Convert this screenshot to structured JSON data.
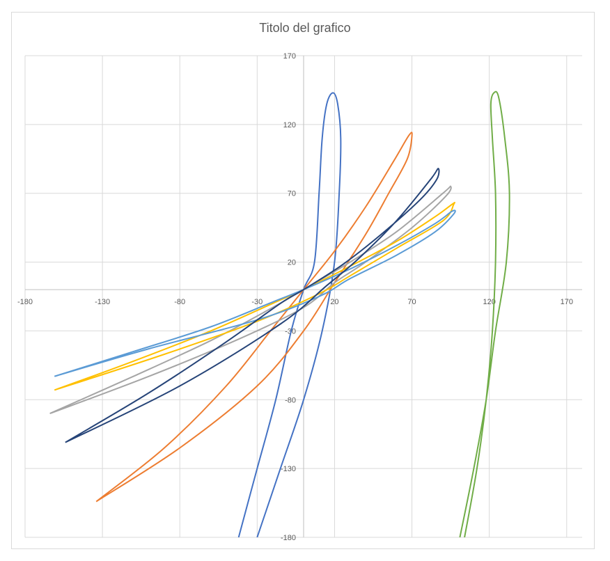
{
  "chart_data": {
    "type": "scatter",
    "title": "Titolo del grafico",
    "xlabel": "",
    "ylabel": "",
    "xlim": [
      -180,
      180
    ],
    "ylim": [
      -180,
      170
    ],
    "grid": true,
    "x_ticks": [
      -180,
      -130,
      -80,
      -30,
      20,
      70,
      120,
      170
    ],
    "y_ticks": [
      170,
      120,
      70,
      20,
      -30,
      -80,
      -130,
      -180
    ],
    "series": [
      {
        "color": "#4472C4",
        "points": [
          [
            -42,
            -180
          ],
          [
            -30,
            -130
          ],
          [
            -18,
            -80
          ],
          [
            -8,
            -30
          ],
          [
            0,
            0
          ],
          [
            7,
            20
          ],
          [
            10,
            70
          ],
          [
            12,
            110
          ],
          [
            15,
            135
          ],
          [
            19,
            143
          ],
          [
            22,
            135
          ],
          [
            24,
            110
          ],
          [
            23,
            70
          ],
          [
            20,
            20
          ],
          [
            12,
            -30
          ],
          [
            0,
            -80
          ],
          [
            -15,
            -130
          ],
          [
            -30,
            -180
          ]
        ]
      },
      {
        "color": "#ED7D31",
        "points": [
          [
            -134,
            -154
          ],
          [
            -90,
            -115
          ],
          [
            -50,
            -70
          ],
          [
            -20,
            -28
          ],
          [
            0,
            0
          ],
          [
            20,
            28
          ],
          [
            40,
            60
          ],
          [
            58,
            93
          ],
          [
            68,
            112
          ],
          [
            70,
            112
          ],
          [
            67,
            95
          ],
          [
            55,
            70
          ],
          [
            40,
            40
          ],
          [
            20,
            5
          ],
          [
            0,
            -30
          ],
          [
            -30,
            -70
          ],
          [
            -80,
            -115
          ],
          [
            -134,
            -154
          ]
        ]
      },
      {
        "color": "#A5A5A5",
        "points": [
          [
            -164,
            -90
          ],
          [
            -110,
            -63
          ],
          [
            -60,
            -37
          ],
          [
            -20,
            -13
          ],
          [
            0,
            0
          ],
          [
            30,
            20
          ],
          [
            60,
            42
          ],
          [
            90,
            70
          ],
          [
            95,
            75
          ],
          [
            92,
            68
          ],
          [
            70,
            45
          ],
          [
            40,
            20
          ],
          [
            20,
            5
          ],
          [
            0,
            -13
          ],
          [
            -40,
            -35
          ],
          [
            -100,
            -63
          ],
          [
            -164,
            -90
          ]
        ]
      },
      {
        "color": "#FFC000",
        "points": [
          [
            -161,
            -73
          ],
          [
            -110,
            -52
          ],
          [
            -60,
            -30
          ],
          [
            -20,
            -10
          ],
          [
            0,
            0
          ],
          [
            30,
            17
          ],
          [
            60,
            35
          ],
          [
            85,
            53
          ],
          [
            96,
            62
          ],
          [
            97,
            62
          ],
          [
            90,
            50
          ],
          [
            60,
            30
          ],
          [
            30,
            10
          ],
          [
            10,
            -3
          ],
          [
            -30,
            -23
          ],
          [
            -90,
            -47
          ],
          [
            -161,
            -73
          ]
        ]
      },
      {
        "color": "#5B9BD5",
        "points": [
          [
            -161,
            -63
          ],
          [
            -110,
            -45
          ],
          [
            -60,
            -27
          ],
          [
            -20,
            -9
          ],
          [
            0,
            0
          ],
          [
            30,
            15
          ],
          [
            60,
            32
          ],
          [
            85,
            48
          ],
          [
            96,
            57
          ],
          [
            97,
            55
          ],
          [
            85,
            42
          ],
          [
            60,
            25
          ],
          [
            30,
            8
          ],
          [
            10,
            -5
          ],
          [
            -30,
            -22
          ],
          [
            -100,
            -43
          ],
          [
            -161,
            -63
          ]
        ]
      },
      {
        "color": "#264478",
        "points": [
          [
            -154,
            -111
          ],
          [
            -100,
            -75
          ],
          [
            -50,
            -38
          ],
          [
            -15,
            -10
          ],
          [
            0,
            0
          ],
          [
            25,
            18
          ],
          [
            50,
            40
          ],
          [
            75,
            65
          ],
          [
            86,
            80
          ],
          [
            87,
            88
          ],
          [
            82,
            80
          ],
          [
            60,
            50
          ],
          [
            35,
            22
          ],
          [
            15,
            3
          ],
          [
            -15,
            -25
          ],
          [
            -80,
            -70
          ],
          [
            -154,
            -111
          ]
        ]
      },
      {
        "color": "#70AD47",
        "points": [
          [
            104,
            -180
          ],
          [
            112,
            -130
          ],
          [
            118,
            -80
          ],
          [
            122,
            -30
          ],
          [
            124,
            20
          ],
          [
            124,
            70
          ],
          [
            122,
            110
          ],
          [
            121,
            135
          ],
          [
            123,
            143
          ],
          [
            126,
            140
          ],
          [
            130,
            110
          ],
          [
            133,
            70
          ],
          [
            131,
            20
          ],
          [
            124,
            -30
          ],
          [
            118,
            -80
          ],
          [
            110,
            -130
          ],
          [
            101,
            -180
          ]
        ]
      }
    ]
  }
}
